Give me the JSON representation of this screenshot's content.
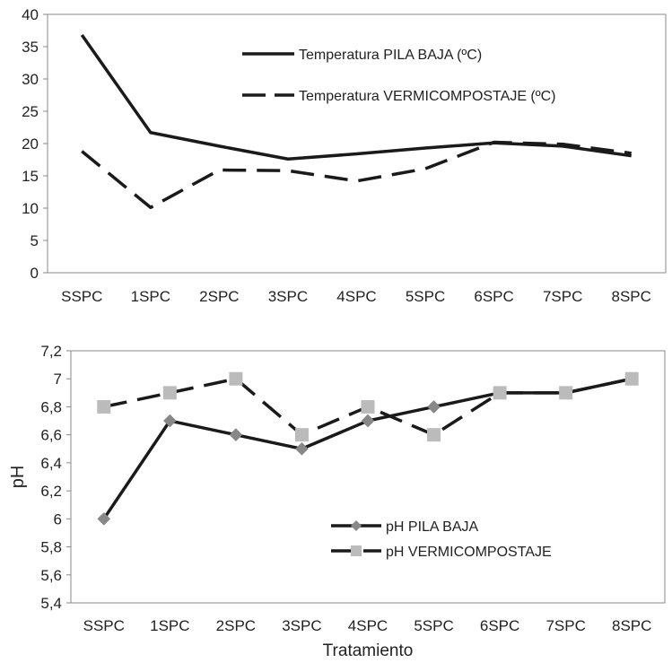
{
  "chart_data": [
    {
      "type": "line",
      "categories": [
        "SSPC",
        "1SPC",
        "2SPC",
        "3SPC",
        "4SPC",
        "5SPC",
        "6SPC",
        "7SPC",
        "8SPC"
      ],
      "series": [
        {
          "name": "Temperatura PILA BAJA (ºC)",
          "values": [
            36.8,
            21.7,
            19.6,
            17.6,
            18.4,
            19.3,
            20.1,
            19.6,
            18.1
          ],
          "style": "solid",
          "color": "#1a1a1a"
        },
        {
          "name": "Temperatura VERMICOMPOSTAJE (ºC)",
          "values": [
            18.8,
            10.1,
            15.9,
            15.8,
            14.2,
            16.1,
            20.2,
            19.9,
            18.5
          ],
          "style": "dashed",
          "color": "#1a1a1a"
        }
      ],
      "yticks": [
        "0",
        "5",
        "10",
        "15",
        "20",
        "25",
        "30",
        "35",
        "40"
      ],
      "ylim": [
        0,
        40
      ],
      "xlabel": "",
      "ylabel": "",
      "legend": "top-right",
      "grid": false
    },
    {
      "type": "line",
      "categories": [
        "SSPC",
        "1SPC",
        "2SPC",
        "3SPC",
        "4SPC",
        "5SPC",
        "6SPC",
        "7SPC",
        "8SPC"
      ],
      "series": [
        {
          "name": "pH PILA BAJA",
          "values": [
            6.0,
            6.7,
            6.6,
            6.5,
            6.7,
            6.8,
            6.9,
            6.9,
            7.0
          ],
          "style": "solid",
          "marker": "diamond",
          "color": "#1a1a1a",
          "marker_color": "#888888"
        },
        {
          "name": "pH VERMICOMPOSTAJE",
          "values": [
            6.8,
            6.9,
            7.0,
            6.6,
            6.8,
            6.6,
            6.9,
            6.9,
            7.0
          ],
          "style": "dashed",
          "marker": "square",
          "color": "#1a1a1a",
          "marker_color": "#bbbbbb"
        }
      ],
      "yticks": [
        "5,4",
        "5,6",
        "5,8",
        "6",
        "6,2",
        "6,4",
        "6,6",
        "6,8",
        "7",
        "7,2"
      ],
      "ylim": [
        5.4,
        7.2
      ],
      "xlabel": "Tratamiento",
      "ylabel": "pH",
      "legend": "bottom-center",
      "grid": false
    }
  ]
}
